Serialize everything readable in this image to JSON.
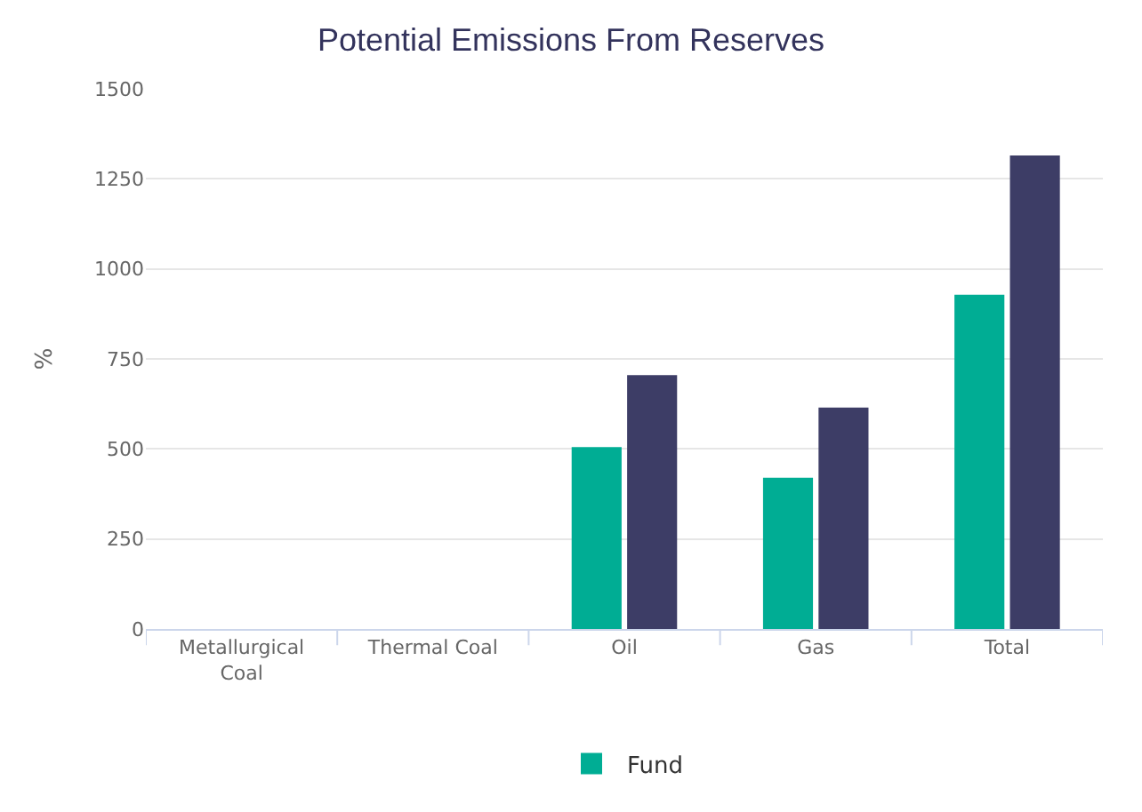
{
  "chart_data": {
    "type": "bar",
    "title": "Potential Emissions From Reserves",
    "ylabel": "%",
    "categories": [
      "Metallurgical Coal",
      "Thermal Coal",
      "Oil",
      "Gas",
      "Total"
    ],
    "series": [
      {
        "name": "Fund",
        "color": "#00ad94",
        "values": [
          0,
          0,
          505,
          420,
          928
        ]
      },
      {
        "color": "#3d3d66",
        "values": [
          0,
          0,
          705,
          615,
          1315
        ]
      }
    ],
    "ylim": [
      0,
      1500
    ],
    "yticks": [
      0,
      250,
      500,
      750,
      1000,
      1250,
      1500
    ],
    "grid": "y",
    "legend": "bottom"
  }
}
